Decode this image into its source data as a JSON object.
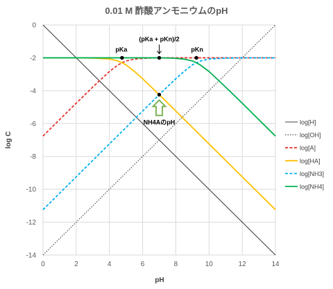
{
  "chart_data": {
    "type": "line",
    "title": "0.01 M 酢酸アンモニウムのpH",
    "xlabel": "pH",
    "ylabel": "log C",
    "xlim": [
      0,
      14
    ],
    "ylim": [
      -14,
      0
    ],
    "xticks": [
      0,
      2,
      4,
      6,
      8,
      10,
      12,
      14
    ],
    "yticks": [
      0,
      -2,
      -4,
      -6,
      -8,
      -10,
      -12,
      -14
    ],
    "grid": true,
    "legend_position": "right",
    "params": {
      "C": 0.01,
      "pKa": 4.76,
      "pKn": 9.24,
      "pKw": 14
    },
    "series": [
      {
        "name": "log[H]",
        "color": "#404040",
        "dash": "solid",
        "points": [
          [
            0,
            0
          ],
          [
            14,
            -14
          ]
        ]
      },
      {
        "name": "log[OH]",
        "color": "#404040",
        "dash": "dotted",
        "points": [
          [
            0,
            -14
          ],
          [
            14,
            0
          ]
        ]
      },
      {
        "name": "log[A]",
        "color": "#e8312a",
        "dash": "dashed",
        "points": [
          [
            0,
            -6.76
          ],
          [
            1,
            -5.76
          ],
          [
            2,
            -4.76
          ],
          [
            3,
            -3.78
          ],
          [
            4,
            -2.83
          ],
          [
            4.5,
            -2.45
          ],
          [
            4.76,
            -2.3
          ],
          [
            5,
            -2.19
          ],
          [
            5.5,
            -2.08
          ],
          [
            6,
            -2.03
          ],
          [
            7,
            -2.0
          ],
          [
            8,
            -2.0
          ],
          [
            10,
            -2.0
          ],
          [
            12,
            -2.0
          ],
          [
            14,
            -2.0
          ]
        ]
      },
      {
        "name": "log[HA]",
        "color": "#ffc000",
        "dash": "solid",
        "points": [
          [
            0,
            -2.0
          ],
          [
            2,
            -2.0
          ],
          [
            3,
            -2.02
          ],
          [
            4,
            -2.07
          ],
          [
            4.5,
            -2.19
          ],
          [
            4.76,
            -2.3
          ],
          [
            5,
            -2.43
          ],
          [
            5.5,
            -2.82
          ],
          [
            6,
            -3.27
          ],
          [
            7,
            -4.24
          ],
          [
            8,
            -5.24
          ],
          [
            9,
            -6.24
          ],
          [
            10,
            -7.24
          ],
          [
            11,
            -8.24
          ],
          [
            12,
            -9.24
          ],
          [
            13,
            -10.24
          ],
          [
            14,
            -11.24
          ]
        ]
      },
      {
        "name": "log[NH3]",
        "color": "#00b0f0",
        "dash": "dashed",
        "points": [
          [
            0,
            -11.24
          ],
          [
            1,
            -10.24
          ],
          [
            2,
            -9.24
          ],
          [
            3,
            -8.24
          ],
          [
            4,
            -7.24
          ],
          [
            5,
            -6.24
          ],
          [
            6,
            -5.24
          ],
          [
            7,
            -4.24
          ],
          [
            8,
            -3.27
          ],
          [
            8.5,
            -2.82
          ],
          [
            9,
            -2.43
          ],
          [
            9.24,
            -2.3
          ],
          [
            9.5,
            -2.19
          ],
          [
            10,
            -2.07
          ],
          [
            11,
            -2.02
          ],
          [
            12,
            -2.0
          ],
          [
            14,
            -2.0
          ]
        ]
      },
      {
        "name": "log[NH4]",
        "color": "#00b050",
        "dash": "solid",
        "points": [
          [
            0,
            -2.0
          ],
          [
            6,
            -2.0
          ],
          [
            7,
            -2.0
          ],
          [
            8,
            -2.03
          ],
          [
            8.5,
            -2.08
          ],
          [
            9,
            -2.19
          ],
          [
            9.24,
            -2.3
          ],
          [
            9.5,
            -2.45
          ],
          [
            10,
            -2.83
          ],
          [
            11,
            -3.78
          ],
          [
            12,
            -4.76
          ],
          [
            13,
            -5.76
          ],
          [
            14,
            -6.76
          ]
        ]
      }
    ],
    "points": [
      {
        "label": "pKa",
        "x": 4.76,
        "y": -2.0
      },
      {
        "label": "(pKa + pKn)/2",
        "x": 7.0,
        "y": -2.0
      },
      {
        "label": "pKn",
        "x": 9.24,
        "y": -2.0
      },
      {
        "label": "NH4AのpH",
        "x": 7.0,
        "y": -4.24
      }
    ]
  }
}
